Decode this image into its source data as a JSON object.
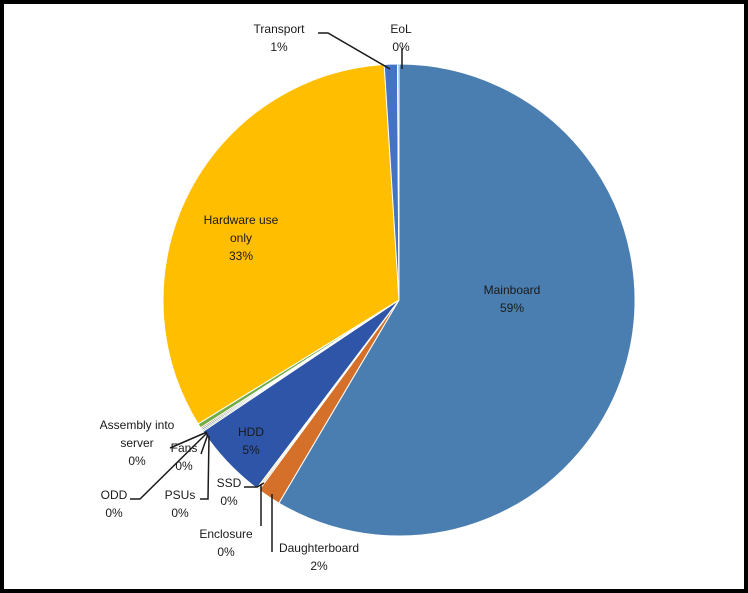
{
  "chart_data": {
    "type": "pie",
    "title": "",
    "slices": [
      {
        "name": "Mainboard",
        "value": 58.5,
        "pct_label": "59%",
        "color": "#4a7eb0"
      },
      {
        "name": "Daughterboard",
        "value": 1.6,
        "pct_label": "2%",
        "color": "#d4702a"
      },
      {
        "name": "Enclosure",
        "value": 0.1,
        "pct_label": "0%",
        "color": "#a0a0a0"
      },
      {
        "name": "SSD",
        "value": 0.1,
        "pct_label": "0%",
        "color": "#f0c020"
      },
      {
        "name": "HDD",
        "value": 5.3,
        "pct_label": "5%",
        "color": "#2e55a8"
      },
      {
        "name": "PSUs",
        "value": 0.1,
        "pct_label": "0%",
        "color": "#62a047"
      },
      {
        "name": "Fans",
        "value": 0.1,
        "pct_label": "0%",
        "color": "#264478"
      },
      {
        "name": "ODD",
        "value": 0.1,
        "pct_label": "0%",
        "color": "#9e480e"
      },
      {
        "name": "Assembly into server",
        "value": 0.3,
        "pct_label": "0%",
        "color": "#70ad47"
      },
      {
        "name": "Hardware use only",
        "value": 32.8,
        "pct_label": "33%",
        "color": "#ffbe00"
      },
      {
        "name": "Transport",
        "value": 0.9,
        "pct_label": "1%",
        "color": "#4472c4"
      },
      {
        "name": "EoL",
        "value": 0.1,
        "pct_label": "0%",
        "color": "#5b9bd5"
      }
    ]
  }
}
